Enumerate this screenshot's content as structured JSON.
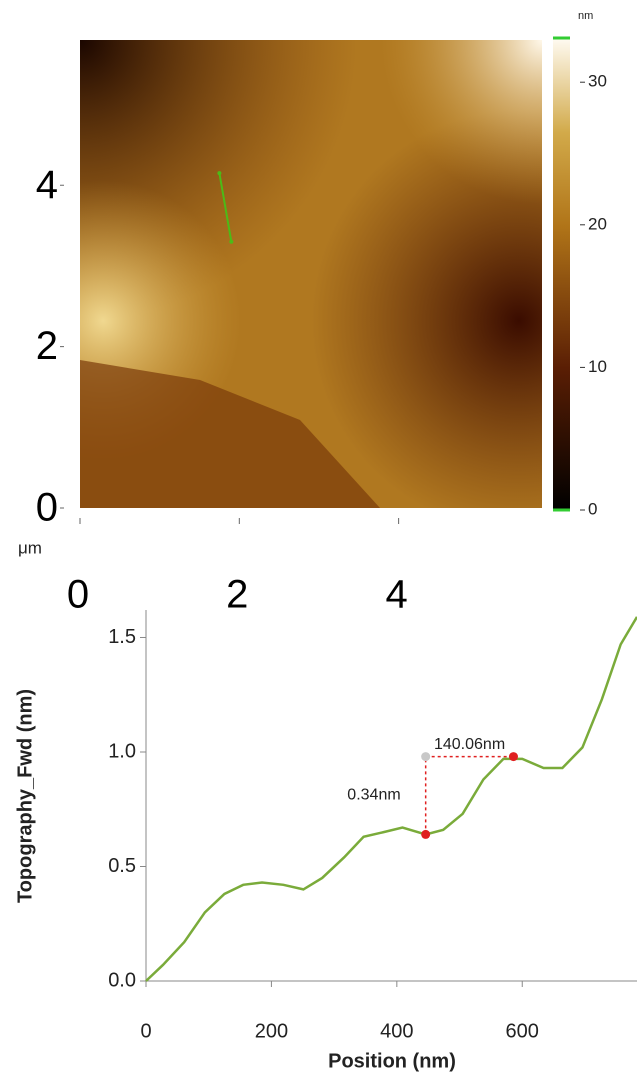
{
  "chart_data": [
    {
      "type": "image",
      "unit": "μm",
      "xlim": [
        0,
        5.8
      ],
      "ylim": [
        0,
        5.8
      ],
      "xticks": [
        0,
        2,
        4
      ],
      "yticks": [
        0,
        2,
        4
      ],
      "colorbar": {
        "label": "nm",
        "lim": [
          0,
          33.1
        ],
        "ticks": [
          0,
          10,
          20,
          30
        ]
      },
      "profile_line": {
        "color": "#4cbb17",
        "x": [
          1.75,
          1.9
        ],
        "y": [
          4.15,
          3.3
        ]
      }
    },
    {
      "type": "line",
      "xlabel": "Position (nm)",
      "ylabel": "Topography_Fwd (nm)",
      "xlim": [
        0,
        783
      ],
      "ylim": [
        0,
        1.62
      ],
      "xticks": [
        0,
        200,
        400,
        600
      ],
      "yticks": [
        {
          "value": 0,
          "label": "0.0"
        },
        0.5,
        {
          "value": 1,
          "label": "1.0"
        },
        1.5
      ],
      "series": [
        {
          "color": "#7aab3a",
          "x": [
            0,
            27,
            61,
            94,
            125,
            155,
            185,
            219,
            251,
            281,
            316,
            347,
            379,
            409,
            446,
            474,
            505,
            538,
            570,
            600,
            634,
            664,
            696,
            727,
            757,
            783
          ],
          "values": [
            0,
            0.07,
            0.17,
            0.3,
            0.38,
            0.42,
            0.43,
            0.42,
            0.4,
            0.45,
            0.54,
            0.63,
            0.65,
            0.67,
            0.64,
            0.66,
            0.73,
            0.88,
            0.97,
            0.97,
            0.93,
            0.93,
            1.02,
            1.23,
            1.47,
            1.59
          ]
        }
      ],
      "cursors": [
        {
          "x": 446,
          "y": 0.64
        },
        {
          "x": 586,
          "y": 0.98
        }
      ],
      "annotations": [
        "140.06nm",
        "0.34nm"
      ]
    }
  ]
}
